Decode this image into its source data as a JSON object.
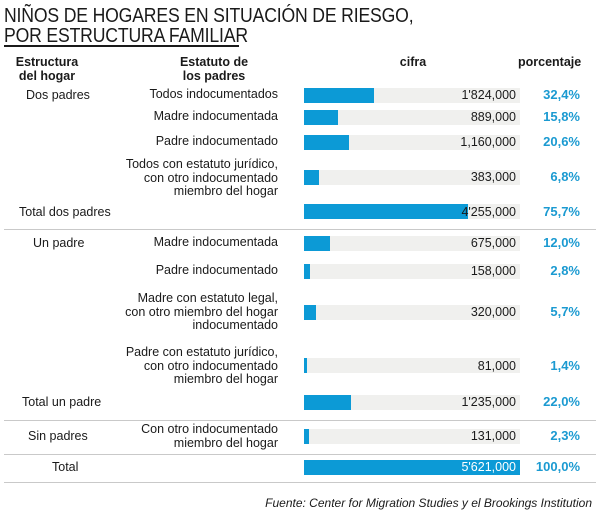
{
  "title_lines": [
    "NIÑOS DE HOGARES EN SITUACIÓN DE RIESGO,",
    "POR ESTRUCTURA FAMILIAR"
  ],
  "headers": {
    "estructura": [
      "Estructura",
      "del hogar"
    ],
    "estatuto": [
      "Estatuto de",
      "los padres"
    ],
    "cifra": "cifra",
    "porcentaje": "porcentaje"
  },
  "source": "Fuente: Center for Migration Studies y el Brookings Institution",
  "colors": {
    "bar": "#0c9ad6",
    "track": "#f0f0ee",
    "percent": "#1b9ad1"
  },
  "chart_data": {
    "type": "bar",
    "orientation": "horizontal",
    "title": "NIÑOS DE HOGARES EN SITUACIÓN DE RIESGO, POR ESTRUCTURA FAMILIAR",
    "xlim": [
      0,
      5621000
    ],
    "rows": [
      {
        "group": "Dos padres",
        "status": "Todos indocumentados",
        "value": 1824000,
        "cifra": "1'824,000",
        "percent": "32,4%"
      },
      {
        "group": "",
        "status": "Madre indocumentada",
        "value": 889000,
        "cifra": "889,000",
        "percent": "15,8%"
      },
      {
        "group": "",
        "status": "Padre indocumentado",
        "value": 1160000,
        "cifra": "1,160,000",
        "percent": "20,6%"
      },
      {
        "group": "",
        "status": "Todos con estatuto jurídico,\ncon otro indocumentado\nmiembro del hogar",
        "value": 383000,
        "cifra": "383,000",
        "percent": "6,8%"
      },
      {
        "group": "Total dos padres",
        "status": "",
        "value": 4255000,
        "cifra": "4'255,000",
        "percent": "75,7%"
      },
      {
        "group": "Un padre",
        "status": "Madre indocumentada",
        "value": 675000,
        "cifra": "675,000",
        "percent": "12,0%"
      },
      {
        "group": "",
        "status": "Padre indocumentado",
        "value": 158000,
        "cifra": "158,000",
        "percent": "2,8%"
      },
      {
        "group": "",
        "status": "Madre con estatuto legal,\ncon otro miembro del hogar\nindocumentado",
        "value": 320000,
        "cifra": "320,000",
        "percent": "5,7%"
      },
      {
        "group": "",
        "status": "Padre con estatuto jurídico,\ncon otro indocumentado\nmiembro del hogar",
        "value": 81000,
        "cifra": "81,000",
        "percent": "1,4%"
      },
      {
        "group": "Total un padre",
        "status": "",
        "value": 1235000,
        "cifra": "1'235,000",
        "percent": "22,0%"
      },
      {
        "group": "Sin padres",
        "status": "Con otro indocumentado\nmiembro del hogar",
        "value": 131000,
        "cifra": "131,000",
        "percent": "2,3%"
      },
      {
        "group": "Total",
        "status": "",
        "value": 5621000,
        "cifra": "5'621,000",
        "percent": "100,0%"
      }
    ]
  }
}
